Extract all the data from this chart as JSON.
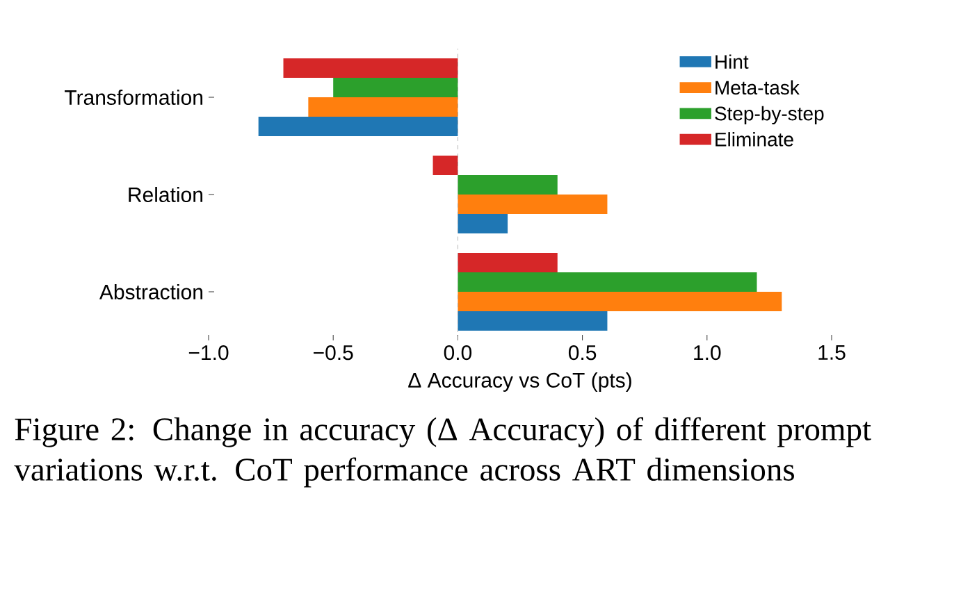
{
  "chart_data": {
    "type": "bar",
    "orientation": "horizontal",
    "categories": [
      "Transformation",
      "Relation",
      "Abstraction"
    ],
    "series": [
      {
        "name": "Hint",
        "color": "#1f77b4",
        "values": [
          -0.8,
          0.2,
          0.6
        ]
      },
      {
        "name": "Meta-task",
        "color": "#ff7f0e",
        "values": [
          -0.6,
          0.6,
          1.3
        ]
      },
      {
        "name": "Step-by-step",
        "color": "#2ca02c",
        "values": [
          -0.5,
          0.4,
          1.2
        ]
      },
      {
        "name": "Eliminate",
        "color": "#d62728",
        "values": [
          -0.7,
          -0.1,
          0.4
        ]
      }
    ],
    "xlabel": "Δ Accuracy vs CoT (pts)",
    "xlim": [
      -1.0,
      1.5
    ],
    "xticks": [
      {
        "value": -1.0,
        "label": "−1.0"
      },
      {
        "value": -0.5,
        "label": "−0.5"
      },
      {
        "value": 0.0,
        "label": "0.0"
      },
      {
        "value": 0.5,
        "label": "0.5"
      },
      {
        "value": 1.0,
        "label": "1.0"
      },
      {
        "value": 1.5,
        "label": "1.5"
      }
    ],
    "ref_lines": [
      {
        "axis": "x",
        "value": 0,
        "color": "#999999",
        "line_style": "dashed"
      }
    ],
    "legend": "top right",
    "grid": false,
    "annotations": [
      "Figure 2: Change in accuracy (Δ Accuracy) of different prompt variations w.r.t. CoT performance across ART dimensions"
    ]
  }
}
